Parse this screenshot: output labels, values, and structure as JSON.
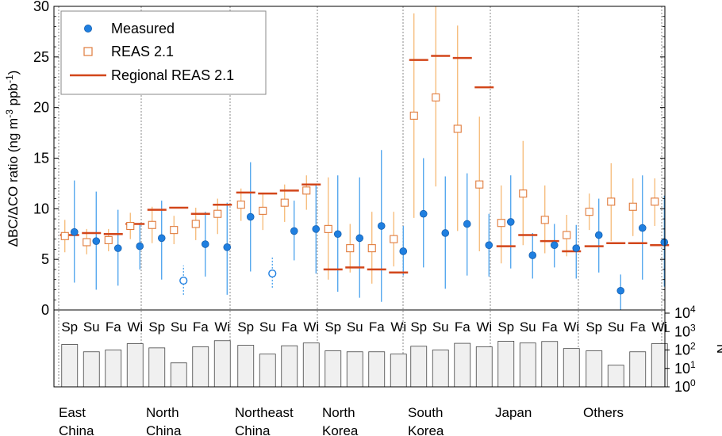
{
  "chart_data": {
    "type": "scatter",
    "ylabel": "ΔBC/ΔCO ratio (ng m-3 ppb-1)",
    "ylabel_parts": {
      "pre": "ΔBC/ΔCO ratio (ng m",
      "sup1": "-3",
      "mid": " ppb",
      "sup2": "-1",
      "post": ")"
    },
    "ylim": [
      0,
      30
    ],
    "yticks": [
      "0",
      "5",
      "10",
      "15",
      "20",
      "25",
      "30"
    ],
    "n_axis_label": "N",
    "n_ticks": [
      {
        "base": "10",
        "exp": "0",
        "value": 1
      },
      {
        "base": "10",
        "exp": "1",
        "value": 10
      },
      {
        "base": "10",
        "exp": "2",
        "value": 100
      },
      {
        "base": "10",
        "exp": "3",
        "value": 1000
      },
      {
        "base": "10",
        "exp": "4",
        "value": 10000
      }
    ],
    "legend": {
      "position": "top-left",
      "measured": "Measured",
      "reas": "REAS 2.1",
      "regional": "Regional REAS 2.1"
    },
    "colors": {
      "measured": "#1f7fe0",
      "measured_err": "#3b9aec",
      "reas": "#e07b3c",
      "reas_err": "#f5b46a",
      "regional": "#d2461a",
      "bar_fill": "#f0f0f0",
      "bar_stroke": "#444444",
      "sep": "#888888"
    },
    "seasons": [
      "Sp",
      "Su",
      "Fa",
      "Wi"
    ],
    "regions": [
      {
        "line1": "East",
        "line2": "China"
      },
      {
        "line1": "North",
        "line2": "China"
      },
      {
        "line1": "Northeast",
        "line2": "China"
      },
      {
        "line1": "North",
        "line2": "Korea"
      },
      {
        "line1": "South",
        "line2": "Korea"
      },
      {
        "line1": "Japan",
        "line2": ""
      },
      {
        "line1": "Others",
        "line2": ""
      }
    ],
    "measured": [
      {
        "y": 7.7,
        "lo": 2.7,
        "hi": 12.8,
        "open": false
      },
      {
        "y": 6.8,
        "lo": 2.0,
        "hi": 11.7,
        "open": false
      },
      {
        "y": 6.1,
        "lo": 2.4,
        "hi": 9.9,
        "open": false
      },
      {
        "y": 6.3,
        "lo": 4.0,
        "hi": 8.6,
        "open": false
      },
      {
        "y": 7.1,
        "lo": 3.0,
        "hi": 10.8,
        "open": false
      },
      {
        "y": 2.9,
        "lo": 1.5,
        "hi": 4.4,
        "open": true
      },
      {
        "y": 6.5,
        "lo": 3.3,
        "hi": 9.7,
        "open": false
      },
      {
        "y": 6.2,
        "lo": 1.5,
        "hi": 10.6,
        "open": false
      },
      {
        "y": 9.2,
        "lo": 3.8,
        "hi": 14.6,
        "open": false
      },
      {
        "y": 3.6,
        "lo": 2.2,
        "hi": 5.3,
        "open": true
      },
      {
        "y": 7.8,
        "lo": 4.9,
        "hi": 10.8,
        "open": false
      },
      {
        "y": 8.0,
        "lo": 3.6,
        "hi": 12.3,
        "open": false
      },
      {
        "y": 7.5,
        "lo": 1.8,
        "hi": 13.3,
        "open": false
      },
      {
        "y": 7.1,
        "lo": 1.2,
        "hi": 13.1,
        "open": false
      },
      {
        "y": 8.3,
        "lo": 0.8,
        "hi": 15.8,
        "open": false
      },
      {
        "y": 5.8,
        "lo": 3.4,
        "hi": 8.3,
        "open": false
      },
      {
        "y": 9.5,
        "lo": 4.2,
        "hi": 15.0,
        "open": false
      },
      {
        "y": 7.6,
        "lo": 2.1,
        "hi": 13.2,
        "open": false
      },
      {
        "y": 8.5,
        "lo": 3.4,
        "hi": 13.5,
        "open": false
      },
      {
        "y": 6.4,
        "lo": 3.3,
        "hi": 9.5,
        "open": false
      },
      {
        "y": 8.7,
        "lo": 4.1,
        "hi": 13.3,
        "open": false
      },
      {
        "y": 5.4,
        "lo": 3.1,
        "hi": 7.6,
        "open": false
      },
      {
        "y": 6.4,
        "lo": 4.2,
        "hi": 8.5,
        "open": false
      },
      {
        "y": 6.1,
        "lo": 3.1,
        "hi": 8.4,
        "open": false
      },
      {
        "y": 7.4,
        "lo": 3.7,
        "hi": 11.0,
        "open": false
      },
      {
        "y": 1.9,
        "lo": 0.0,
        "hi": 3.5,
        "open": false
      },
      {
        "y": 8.1,
        "lo": 3.0,
        "hi": 13.3,
        "open": false
      },
      {
        "y": 6.7,
        "lo": 2.3,
        "hi": 11.3,
        "open": false
      }
    ],
    "reas": [
      {
        "y": 7.3,
        "lo": 5.7,
        "hi": 8.9
      },
      {
        "y": 6.7,
        "lo": 5.5,
        "hi": 8.0
      },
      {
        "y": 6.9,
        "lo": 5.8,
        "hi": 8.0
      },
      {
        "y": 8.3,
        "lo": 7.0,
        "hi": 9.6
      },
      {
        "y": 8.4,
        "lo": 6.6,
        "hi": 10.2
      },
      {
        "y": 7.9,
        "lo": 6.5,
        "hi": 9.3
      },
      {
        "y": 8.5,
        "lo": 6.9,
        "hi": 10.1
      },
      {
        "y": 9.5,
        "lo": 7.5,
        "hi": 11.0
      },
      {
        "y": 10.4,
        "lo": 8.8,
        "hi": 12.0
      },
      {
        "y": 9.8,
        "lo": 7.9,
        "hi": 11.6
      },
      {
        "y": 10.6,
        "lo": 8.7,
        "hi": 12.4
      },
      {
        "y": 11.8,
        "lo": 9.9,
        "hi": 13.3
      },
      {
        "y": 8.0,
        "lo": 3.0,
        "hi": 13.1
      },
      {
        "y": 6.1,
        "lo": 3.7,
        "hi": 8.5
      },
      {
        "y": 6.1,
        "lo": 2.6,
        "hi": 9.7
      },
      {
        "y": 7.0,
        "lo": 4.3,
        "hi": 9.7
      },
      {
        "y": 19.2,
        "lo": 9.1,
        "hi": 29.3
      },
      {
        "y": 21.0,
        "lo": 12.2,
        "hi": 30.0
      },
      {
        "y": 17.9,
        "lo": 7.8,
        "hi": 28.1
      },
      {
        "y": 12.4,
        "lo": 5.8,
        "hi": 19.1
      },
      {
        "y": 8.6,
        "lo": 4.6,
        "hi": 12.3
      },
      {
        "y": 11.5,
        "lo": 6.4,
        "hi": 16.7
      },
      {
        "y": 8.9,
        "lo": 5.6,
        "hi": 12.3
      },
      {
        "y": 7.4,
        "lo": 5.3,
        "hi": 9.4
      },
      {
        "y": 9.7,
        "lo": 7.9,
        "hi": 11.5
      },
      {
        "y": 10.7,
        "lo": 6.8,
        "hi": 14.5
      },
      {
        "y": 10.2,
        "lo": 7.3,
        "hi": 13.0
      },
      {
        "y": 10.7,
        "lo": 8.3,
        "hi": 13.0
      }
    ],
    "regional": [
      7.4,
      7.6,
      7.5,
      8.5,
      9.9,
      10.1,
      9.5,
      10.4,
      11.6,
      11.5,
      11.8,
      12.4,
      4.0,
      4.2,
      4.0,
      3.7,
      24.7,
      25.1,
      24.9,
      22.0,
      6.3,
      7.4,
      6.8,
      5.8,
      6.3,
      6.6,
      6.6,
      6.4
    ],
    "n_values": [
      200,
      80,
      100,
      220,
      130,
      20,
      150,
      320,
      180,
      60,
      170,
      240,
      90,
      80,
      80,
      60,
      160,
      100,
      230,
      150,
      300,
      240,
      290,
      120,
      90,
      15,
      80,
      220
    ]
  }
}
